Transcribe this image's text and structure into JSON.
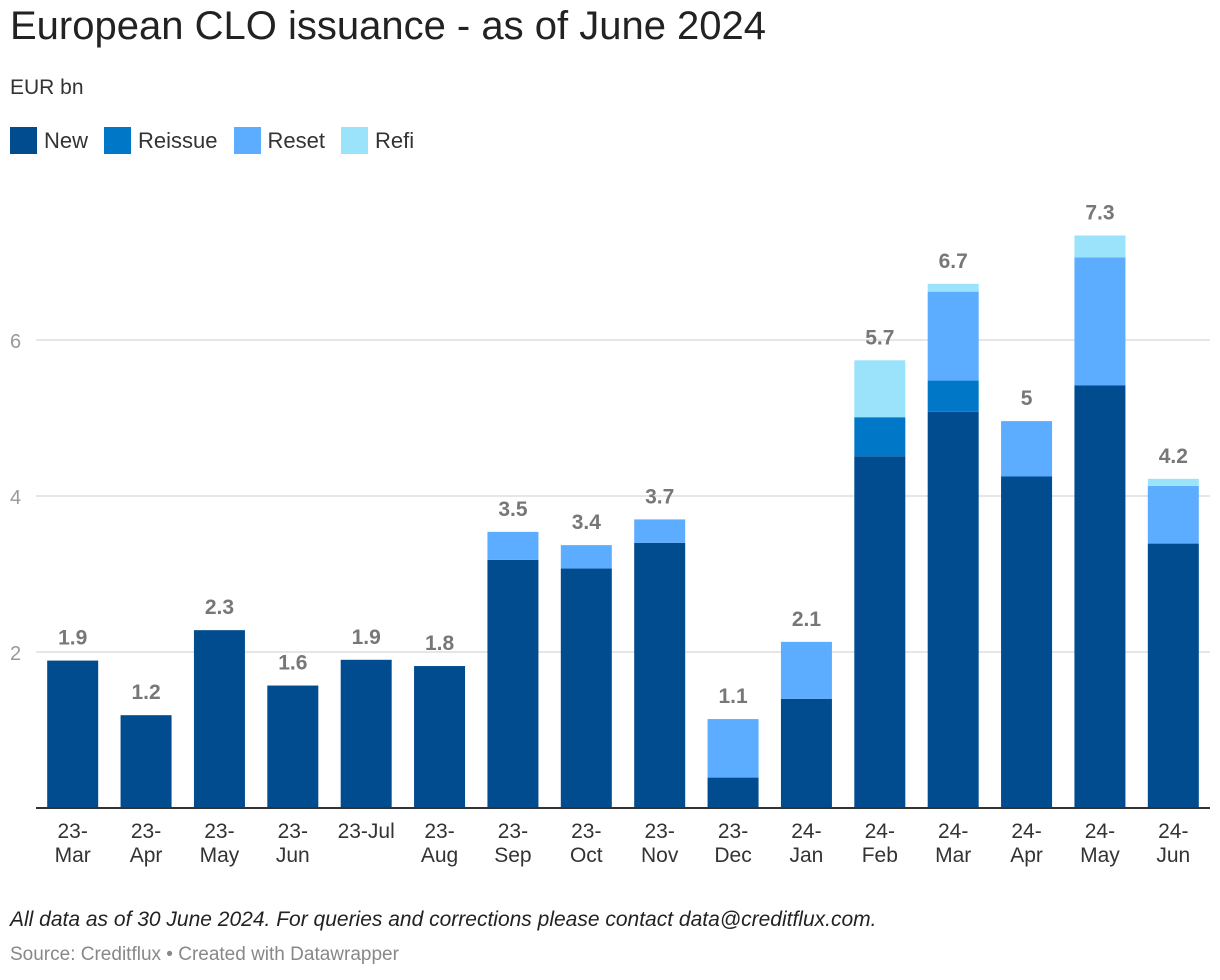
{
  "chart_data": {
    "type": "bar",
    "stacked": true,
    "title": "European CLO issuance - as of June 2024",
    "subtitle": "EUR bn",
    "categories": [
      [
        "23-",
        "Mar"
      ],
      [
        "23-",
        "Apr"
      ],
      [
        "23-",
        "May"
      ],
      [
        "23-",
        "Jun"
      ],
      [
        "23-Jul"
      ],
      [
        "23-",
        "Aug"
      ],
      [
        "23-",
        "Sep"
      ],
      [
        "23-",
        "Oct"
      ],
      [
        "23-",
        "Nov"
      ],
      [
        "23-",
        "Dec"
      ],
      [
        "24-",
        "Jan"
      ],
      [
        "24-",
        "Feb"
      ],
      [
        "24-",
        "Mar"
      ],
      [
        "24-",
        "Apr"
      ],
      [
        "24-",
        "May"
      ],
      [
        "24-",
        "Jun"
      ]
    ],
    "series": [
      {
        "name": "New",
        "color": "#004c8f",
        "values": [
          1.89,
          1.19,
          2.28,
          1.57,
          1.9,
          1.82,
          3.18,
          3.07,
          3.4,
          0.39,
          1.4,
          4.51,
          5.08,
          4.25,
          5.42,
          3.39
        ]
      },
      {
        "name": "Reissue",
        "color": "#0077c7",
        "values": [
          0,
          0,
          0,
          0,
          0,
          0,
          0,
          0,
          0,
          0,
          0,
          0.5,
          0.4,
          0,
          0,
          0
        ]
      },
      {
        "name": "Reset",
        "color": "#5cadff",
        "values": [
          0,
          0,
          0,
          0,
          0,
          0,
          0.36,
          0.3,
          0.3,
          0.75,
          0.73,
          0,
          1.14,
          0.71,
          1.64,
          0.74
        ]
      },
      {
        "name": "Refi",
        "color": "#9be3fb",
        "values": [
          0,
          0,
          0,
          0,
          0,
          0,
          0,
          0,
          0,
          0,
          0,
          0.73,
          0.1,
          0,
          0.28,
          0.09
        ]
      }
    ],
    "total_labels": [
      "1.9",
      "1.2",
      "2.3",
      "1.6",
      "1.9",
      "1.8",
      "3.5",
      "3.4",
      "3.7",
      "1.1",
      "2.1",
      "5.7",
      "6.7",
      "5",
      "7.3",
      "4.2"
    ],
    "y_ticks": [
      2,
      4,
      6
    ],
    "ylim": [
      0,
      7.65
    ],
    "grid": true,
    "legend_position": "top-left"
  },
  "footer": {
    "note": "All data as of 30 June 2024. For queries and corrections please contact data@creditflux.com.",
    "source": "Source: Creditflux • Created with Datawrapper"
  }
}
